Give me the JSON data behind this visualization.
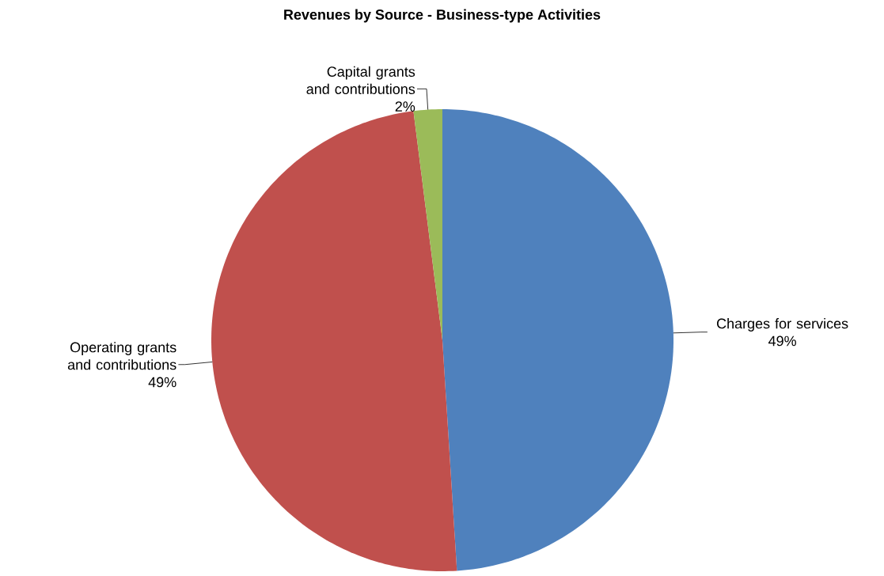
{
  "chart_data": {
    "type": "pie",
    "title": "Revenues by Source - Business-type Activities",
    "categories": [
      "Charges for services",
      "Operating grants and contributions",
      "Capital grants and contributions"
    ],
    "values": [
      49,
      49,
      2
    ],
    "value_labels": [
      "49%",
      "49%",
      "2%"
    ],
    "colors": [
      "#4f81bd",
      "#c0504d",
      "#9bbb59"
    ]
  }
}
